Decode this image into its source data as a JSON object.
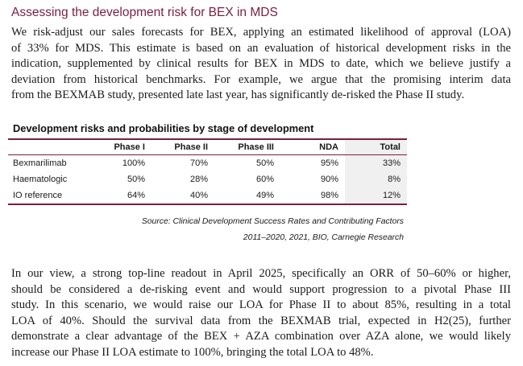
{
  "heading": "Assessing the development risk for BEX in MDS",
  "paragraph1": {
    "lines": [
      "We risk-adjust our sales forecasts for BEX, applying an estimated likelihood of approval (LOA)",
      "of 33% for MDS. This estimate is based on an evaluation of historical development risks in the",
      "indication, supplemented by clinical results for BEX in MDS to date, which we believe justify a",
      "deviation from historical benchmarks. For example, we argue that the promising interim data",
      "from the BEXMAB study, presented late last year, has significantly de-risked the Phase II study."
    ]
  },
  "table": {
    "title": "Development risks and probabilities by stage of development",
    "headers": [
      "",
      "Phase I",
      "Phase II",
      "Phase III",
      "NDA",
      "Total"
    ],
    "rows": [
      [
        "Bexmarilimab",
        "100%",
        "70%",
        "50%",
        "95%",
        "33%"
      ],
      [
        "Haematologic",
        "50%",
        "28%",
        "60%",
        "90%",
        "8%"
      ],
      [
        "IO reference",
        "64%",
        "40%",
        "49%",
        "98%",
        "12%"
      ]
    ],
    "source_lines": [
      "Source: Clinical Development Success Rates and Contributing Factors",
      "2011–2020, 2021, BIO, Carnegie Research"
    ]
  },
  "paragraph2": {
    "lines": [
      "In our view, a strong top-line readout in April 2025, specifically an ORR of 50–60% or higher,",
      "should be considered a de-risking event and would support progression to a pivotal Phase III",
      "study. In this scenario, we would raise our LOA for Phase II to about 85%, resulting in a total",
      "LOA of 40%. Should the survival data from the BEXMAB trial, expected in H2(25), further",
      "demonstrate a clear advantage of the BEX + AZA combination over AZA alone, we would likely",
      "increase our Phase II LOA estimate to 100%, bringing the total LOA to 48%."
    ]
  },
  "colors": {
    "accent": "#7a1f3d",
    "total_column_bg": "#f0f0f0"
  }
}
